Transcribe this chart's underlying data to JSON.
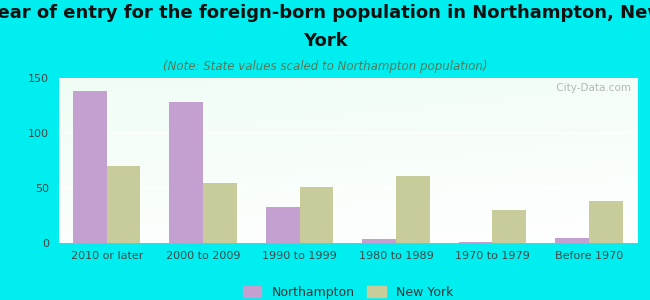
{
  "title_line1": "Year of entry for the foreign-born population in Northampton, New",
  "title_line2": "York",
  "subtitle": "(Note: State values scaled to Northampton population)",
  "categories": [
    "2010 or later",
    "2000 to 2009",
    "1990 to 1999",
    "1980 to 1989",
    "1970 to 1979",
    "Before 1970"
  ],
  "northampton_values": [
    138,
    128,
    33,
    4,
    1,
    5
  ],
  "newyork_values": [
    70,
    55,
    51,
    61,
    30,
    38
  ],
  "northampton_color": "#c4a0d0",
  "newyork_color": "#c8cc9a",
  "background_color": "#00eef0",
  "ylim": [
    0,
    150
  ],
  "yticks": [
    0,
    50,
    100,
    150
  ],
  "bar_width": 0.35,
  "title_fontsize": 13,
  "subtitle_fontsize": 8.5,
  "axis_label_fontsize": 8,
  "legend_fontsize": 9,
  "watermark": " City-Data.com"
}
